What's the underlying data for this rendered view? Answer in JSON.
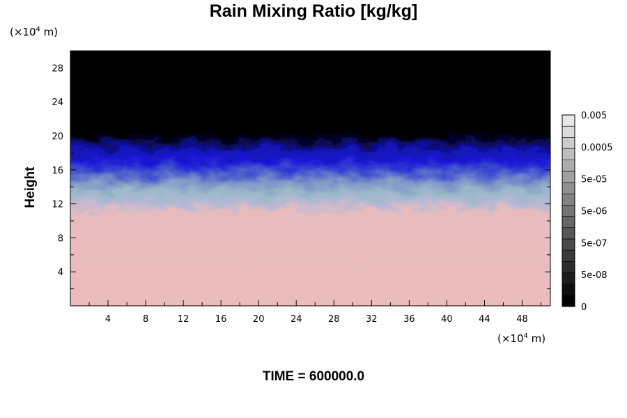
{
  "chart_data": {
    "type": "heatmap",
    "title": "Rain Mixing Ratio [kg/kg]",
    "ylabel": "Height",
    "x_unit_prefix": "(×10",
    "x_unit_exp": "4",
    "x_unit_suffix": " m)",
    "y_unit_prefix": "(×10",
    "y_unit_exp": "4",
    "y_unit_suffix": " m)",
    "xlim": [
      0,
      51
    ],
    "ylim": [
      0,
      30
    ],
    "x_ticks": [
      4,
      8,
      12,
      16,
      20,
      24,
      28,
      32,
      36,
      40,
      44,
      48
    ],
    "x_tick_labels": [
      "4",
      "8",
      "12",
      "16",
      "20",
      "24",
      "28",
      "32",
      "36",
      "40",
      "44",
      "48"
    ],
    "y_ticks": [
      4,
      8,
      12,
      16,
      20,
      24,
      28
    ],
    "y_tick_labels": [
      "4",
      "8",
      "12",
      "16",
      "20",
      "24",
      "28"
    ],
    "colorbar": {
      "levels": 17,
      "labels": [
        "0",
        "5e-08",
        "5e-07",
        "5e-06",
        "5e-05",
        "0.0005",
        "0.005"
      ],
      "label_levels": [
        0,
        3,
        6,
        9,
        12,
        15,
        18
      ]
    },
    "field_bands": [
      {
        "y_from": 19.5,
        "y_to": 30,
        "color": "#000000"
      },
      {
        "y_from": 16.0,
        "y_to": 19.5,
        "color": "#1a1ad6"
      },
      {
        "y_from": 12.0,
        "y_to": 16.0,
        "color": "#8fa8c8"
      },
      {
        "y_from": 0,
        "y_to": 12.0,
        "color": "#ecbcbc"
      }
    ],
    "footer": "TIME = 600000.0"
  }
}
